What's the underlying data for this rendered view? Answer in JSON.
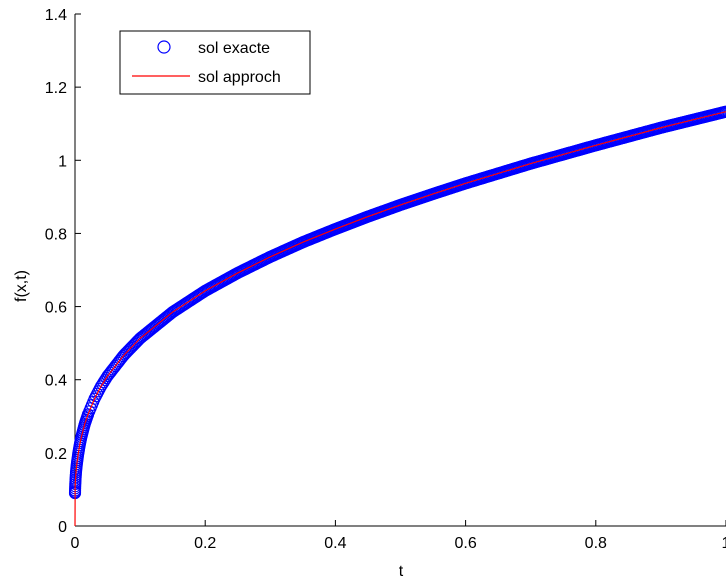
{
  "chart_data": {
    "type": "line",
    "title": "",
    "xlabel": "t",
    "ylabel": "f(x,t)",
    "xlim": [
      0,
      1
    ],
    "ylim": [
      0,
      1.4
    ],
    "x_ticks": [
      "0",
      "0.2",
      "0.4",
      "0.6",
      "0.8",
      "1"
    ],
    "y_ticks": [
      "0",
      "0.2",
      "0.4",
      "0.6",
      "0.8",
      "1",
      "1.2",
      "1.4"
    ],
    "grid": false,
    "legend_position": "top-left",
    "series": [
      {
        "name": "sol exacte",
        "style": "circle-markers",
        "color": "#0000ff",
        "x": [
          0,
          0.00025,
          0.0005,
          0.001,
          0.0015,
          0.002,
          0.003,
          0.005,
          0.0075,
          0.01,
          0.015,
          0.02,
          0.03,
          0.04,
          0.05,
          0.075,
          0.1,
          0.15,
          0.2,
          0.25,
          0.3,
          0.35,
          0.4,
          0.45,
          0.5,
          0.55,
          0.6,
          0.65,
          0.7,
          0.75,
          0.8,
          0.85,
          0.9,
          0.95,
          1.0
        ],
        "y": [
          0.09,
          0.106,
          0.117,
          0.133,
          0.146,
          0.156,
          0.172,
          0.198,
          0.224,
          0.245,
          0.279,
          0.305,
          0.348,
          0.382,
          0.41,
          0.467,
          0.513,
          0.585,
          0.643,
          0.692,
          0.736,
          0.776,
          0.812,
          0.846,
          0.878,
          0.908,
          0.937,
          0.964,
          0.991,
          1.016,
          1.041,
          1.065,
          1.089,
          1.111,
          1.133
        ]
      },
      {
        "name": "sol approch",
        "style": "line",
        "color": "#ff0000",
        "x": [
          0,
          0.00025,
          0.0005,
          0.001,
          0.0015,
          0.002,
          0.003,
          0.005,
          0.0075,
          0.01,
          0.015,
          0.02,
          0.03,
          0.04,
          0.05,
          0.075,
          0.1,
          0.15,
          0.2,
          0.25,
          0.3,
          0.35,
          0.4,
          0.45,
          0.5,
          0.55,
          0.6,
          0.65,
          0.7,
          0.75,
          0.8,
          0.85,
          0.9,
          0.95,
          1.0
        ],
        "y": [
          0.0,
          0.106,
          0.117,
          0.133,
          0.146,
          0.156,
          0.172,
          0.198,
          0.224,
          0.245,
          0.279,
          0.305,
          0.348,
          0.382,
          0.41,
          0.467,
          0.513,
          0.585,
          0.643,
          0.692,
          0.736,
          0.776,
          0.812,
          0.846,
          0.878,
          0.908,
          0.937,
          0.964,
          0.991,
          1.016,
          1.041,
          1.065,
          1.089,
          1.111,
          1.133
        ]
      }
    ]
  }
}
